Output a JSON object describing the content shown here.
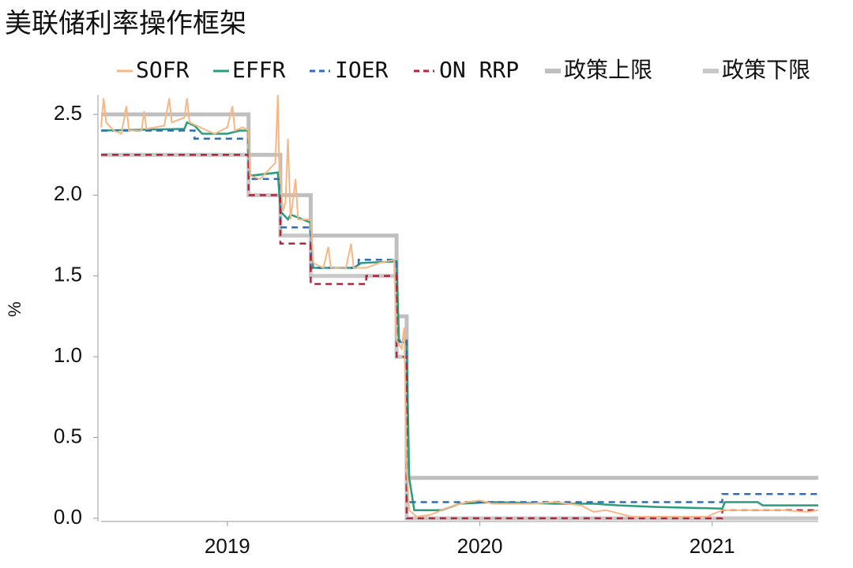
{
  "chart_data": {
    "type": "line",
    "title": "美联储利率操作框架",
    "ylabel": "%",
    "xlim": [
      2019,
      2021.84
    ],
    "ylim": [
      -0.01,
      2.62
    ],
    "xticks": [
      {
        "value": 2019.5,
        "label": "2019"
      },
      {
        "value": 2020.5,
        "label": "2020"
      },
      {
        "value": 2021.42,
        "label": "2021"
      }
    ],
    "yticks": [
      {
        "value": 0,
        "label": "0.0"
      },
      0.5,
      {
        "value": 1,
        "label": "1.0"
      },
      1.5,
      {
        "value": 2,
        "label": "2.0"
      },
      2.5
    ],
    "series": [
      {
        "name": "SOFR",
        "color": "#f6b783",
        "dash": "solid",
        "width": 2,
        "x": [
          2019.0,
          2019.01,
          2019.02,
          2019.05,
          2019.08,
          2019.1,
          2019.11,
          2019.16,
          2019.17,
          2019.18,
          2019.25,
          2019.27,
          2019.28,
          2019.33,
          2019.34,
          2019.35,
          2019.42,
          2019.45,
          2019.5,
          2019.52,
          2019.53,
          2019.56,
          2019.584,
          2019.59,
          2019.63,
          2019.66,
          2019.69,
          2019.7,
          2019.705,
          2019.72,
          2019.73,
          2019.74,
          2019.75,
          2019.77,
          2019.78,
          2019.83,
          2019.84,
          2019.88,
          2019.9,
          2019.91,
          2019.97,
          2019.99,
          2020.0,
          2020.05,
          2020.1,
          2020.16,
          2020.17,
          2020.19,
          2020.2,
          2020.21,
          2020.22,
          2020.25,
          2020.3,
          2020.35,
          2020.4,
          2020.45,
          2020.5,
          2020.55,
          2020.6,
          2020.7,
          2020.8,
          2020.9,
          2020.95,
          2021.0,
          2021.05,
          2021.1,
          2021.2,
          2021.3,
          2021.4,
          2021.46,
          2021.6,
          2021.7,
          2021.8,
          2021.84
        ],
        "values": [
          2.42,
          2.6,
          2.45,
          2.4,
          2.38,
          2.55,
          2.4,
          2.4,
          2.52,
          2.41,
          2.43,
          2.6,
          2.45,
          2.48,
          2.6,
          2.45,
          2.4,
          2.38,
          2.42,
          2.55,
          2.4,
          2.42,
          2.4,
          2.12,
          2.1,
          2.15,
          2.2,
          2.62,
          2.2,
          1.9,
          1.95,
          2.35,
          1.85,
          2.1,
          1.85,
          1.85,
          1.58,
          1.55,
          1.68,
          1.55,
          1.55,
          1.7,
          1.55,
          1.55,
          1.58,
          1.6,
          1.1,
          1.05,
          1.18,
          0.3,
          0.05,
          0.01,
          0.02,
          0.05,
          0.08,
          0.1,
          0.11,
          0.09,
          0.09,
          0.09,
          0.1,
          0.08,
          0.04,
          0.05,
          0.03,
          0.01,
          0.01,
          0.01,
          0.01,
          0.05,
          0.05,
          0.05,
          0.04,
          0.05
        ]
      },
      {
        "name": "EFFR",
        "color": "#2a9d7c",
        "dash": "solid",
        "width": 2.5,
        "x": [
          2019.0,
          2019.33,
          2019.34,
          2019.37,
          2019.4,
          2019.5,
          2019.55,
          2019.584,
          2019.59,
          2019.7,
          2019.71,
          2019.74,
          2019.75,
          2019.83,
          2019.84,
          2019.9,
          2020.0,
          2020.03,
          2020.17,
          2020.18,
          2020.21,
          2020.22,
          2020.24,
          2020.35,
          2020.42,
          2020.55,
          2020.8,
          2020.95,
          2021.05,
          2021.2,
          2021.46,
          2021.47,
          2021.6,
          2021.62,
          2021.84
        ],
        "values": [
          2.4,
          2.41,
          2.45,
          2.43,
          2.38,
          2.38,
          2.4,
          2.4,
          2.12,
          2.14,
          1.9,
          1.85,
          1.88,
          1.83,
          1.55,
          1.55,
          1.55,
          1.58,
          1.59,
          1.09,
          1.09,
          0.25,
          0.05,
          0.05,
          0.09,
          0.1,
          0.09,
          0.09,
          0.08,
          0.07,
          0.06,
          0.1,
          0.1,
          0.08,
          0.08
        ]
      },
      {
        "name": "IOER",
        "color": "#2f6db5",
        "dash": "dashed",
        "width": 2.5,
        "x": [
          2019.0,
          2019.37,
          2019.37,
          2019.584,
          2019.584,
          2019.71,
          2019.71,
          2019.83,
          2019.83,
          2020.02,
          2020.02,
          2020.17,
          2020.17,
          2020.21,
          2020.21,
          2021.46,
          2021.46,
          2021.84
        ],
        "values": [
          2.4,
          2.4,
          2.35,
          2.35,
          2.1,
          2.1,
          1.8,
          1.8,
          1.55,
          1.55,
          1.6,
          1.6,
          1.1,
          1.1,
          0.1,
          0.1,
          0.15,
          0.15
        ]
      },
      {
        "name": "ON RRP",
        "color": "#b0263a",
        "dash": "dashed",
        "width": 2.5,
        "x": [
          2019.0,
          2019.584,
          2019.584,
          2019.71,
          2019.71,
          2019.83,
          2019.83,
          2020.05,
          2020.05,
          2020.17,
          2020.17,
          2020.21,
          2020.21,
          2021.46,
          2021.46,
          2021.84
        ],
        "values": [
          2.25,
          2.25,
          2.0,
          2.0,
          1.7,
          1.7,
          1.45,
          1.45,
          1.5,
          1.5,
          1.0,
          1.0,
          0.0,
          0.0,
          0.05,
          0.05
        ]
      },
      {
        "name": "政策上限",
        "color": "#bfbfbf",
        "dash": "solid",
        "width": 5,
        "x": [
          2019.0,
          2019.584,
          2019.584,
          2019.71,
          2019.71,
          2019.83,
          2019.83,
          2020.17,
          2020.17,
          2020.21,
          2020.21,
          2021.84
        ],
        "values": [
          2.5,
          2.5,
          2.25,
          2.25,
          2.0,
          2.0,
          1.75,
          1.75,
          1.25,
          1.25,
          0.25,
          0.25
        ]
      },
      {
        "name": "政策下限",
        "color": "#c8c8c8",
        "dash": "solid",
        "width": 5,
        "x": [
          2019.0,
          2019.584,
          2019.584,
          2019.71,
          2019.71,
          2019.83,
          2019.83,
          2020.17,
          2020.17,
          2020.21,
          2020.21,
          2021.84
        ],
        "values": [
          2.25,
          2.25,
          2.0,
          2.0,
          1.75,
          1.75,
          1.5,
          1.5,
          1.0,
          1.0,
          0.0,
          0.0
        ]
      }
    ]
  }
}
